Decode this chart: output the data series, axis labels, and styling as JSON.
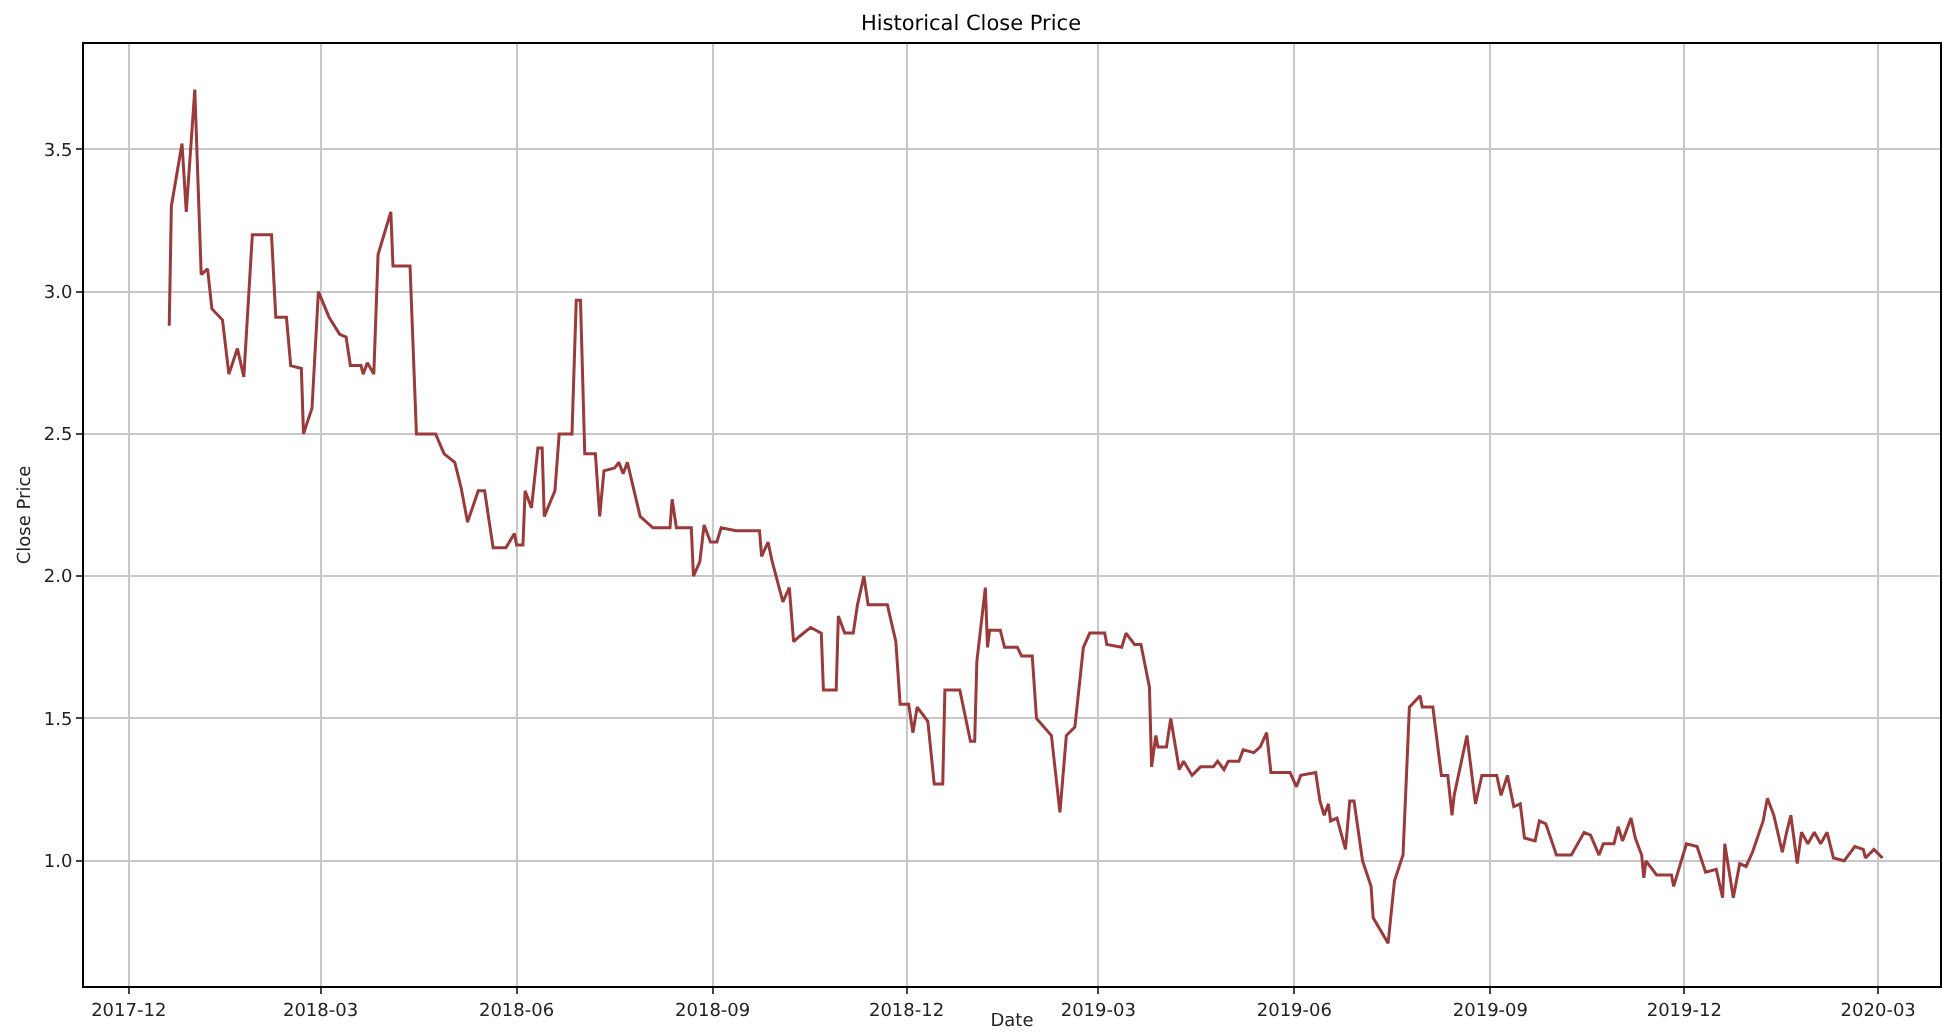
{
  "chart_data": {
    "type": "line",
    "title": "Historical Close Price",
    "xlabel": "Date",
    "ylabel": "Close Price",
    "x": [
      "2017-12-20",
      "2017-12-21",
      "2017-12-26",
      "2017-12-28",
      "2018-01-01",
      "2018-01-04",
      "2018-01-07",
      "2018-01-09",
      "2018-01-14",
      "2018-01-17",
      "2018-01-21",
      "2018-01-24",
      "2018-01-28",
      "2018-02-06",
      "2018-02-08",
      "2018-02-13",
      "2018-02-15",
      "2018-02-20",
      "2018-02-21",
      "2018-02-25",
      "2018-02-28",
      "2018-03-05",
      "2018-03-10",
      "2018-03-13",
      "2018-03-15",
      "2018-03-20",
      "2018-03-21",
      "2018-03-23",
      "2018-03-26",
      "2018-03-28",
      "2018-04-03",
      "2018-04-04",
      "2018-04-12",
      "2018-04-15",
      "2018-04-24",
      "2018-04-28",
      "2018-05-03",
      "2018-05-06",
      "2018-05-09",
      "2018-05-14",
      "2018-05-17",
      "2018-05-21",
      "2018-05-27",
      "2018-05-31",
      "2018-06-01",
      "2018-06-04",
      "2018-06-05",
      "2018-06-08",
      "2018-06-11",
      "2018-06-13",
      "2018-06-14",
      "2018-06-19",
      "2018-06-21",
      "2018-06-27",
      "2018-06-29",
      "2018-07-01",
      "2018-07-03",
      "2018-07-08",
      "2018-07-10",
      "2018-07-12",
      "2018-07-17",
      "2018-07-19",
      "2018-07-21",
      "2018-07-23",
      "2018-07-29",
      "2018-08-04",
      "2018-08-12",
      "2018-08-13",
      "2018-08-15",
      "2018-08-22",
      "2018-08-23",
      "2018-08-26",
      "2018-08-28",
      "2018-08-31",
      "2018-09-03",
      "2018-09-05",
      "2018-09-12",
      "2018-09-23",
      "2018-09-24",
      "2018-09-27",
      "2018-09-29",
      "2018-10-04",
      "2018-10-07",
      "2018-10-09",
      "2018-10-12",
      "2018-10-17",
      "2018-10-22",
      "2018-10-23",
      "2018-10-29",
      "2018-10-30",
      "2018-11-02",
      "2018-11-06",
      "2018-11-08",
      "2018-11-11",
      "2018-11-13",
      "2018-11-22",
      "2018-11-26",
      "2018-11-28",
      "2018-12-02",
      "2018-12-04",
      "2018-12-06",
      "2018-12-11",
      "2018-12-14",
      "2018-12-18",
      "2018-12-19",
      "2018-12-26",
      "2018-12-31",
      "2019-01-02",
      "2019-01-03",
      "2019-01-07",
      "2019-01-08",
      "2019-01-09",
      "2019-01-14",
      "2019-01-16",
      "2019-01-22",
      "2019-01-24",
      "2019-01-29",
      "2019-01-31",
      "2019-02-07",
      "2019-02-11",
      "2019-02-14",
      "2019-02-18",
      "2019-02-20",
      "2019-02-22",
      "2019-02-25",
      "2019-03-04",
      "2019-03-05",
      "2019-03-12",
      "2019-03-14",
      "2019-03-18",
      "2019-03-21",
      "2019-03-25",
      "2019-03-26",
      "2019-03-28",
      "2019-03-29",
      "2019-04-02",
      "2019-04-04",
      "2019-04-08",
      "2019-04-10",
      "2019-04-14",
      "2019-04-18",
      "2019-04-24",
      "2019-04-26",
      "2019-04-29",
      "2019-05-01",
      "2019-05-06",
      "2019-05-08",
      "2019-05-13",
      "2019-05-16",
      "2019-05-19",
      "2019-05-21",
      "2019-05-30",
      "2019-06-02",
      "2019-06-04",
      "2019-06-11",
      "2019-06-13",
      "2019-06-15",
      "2019-06-17",
      "2019-06-18",
      "2019-06-21",
      "2019-06-25",
      "2019-06-27",
      "2019-06-29",
      "2019-07-03",
      "2019-07-07",
      "2019-07-08",
      "2019-07-15",
      "2019-07-18",
      "2019-07-22",
      "2019-07-25",
      "2019-07-30",
      "2019-07-31",
      "2019-08-05",
      "2019-08-09",
      "2019-08-12",
      "2019-08-14",
      "2019-08-15",
      "2019-08-21",
      "2019-08-25",
      "2019-08-28",
      "2019-09-04",
      "2019-09-06",
      "2019-09-09",
      "2019-09-12",
      "2019-09-15",
      "2019-09-17",
      "2019-09-22",
      "2019-09-24",
      "2019-09-27",
      "2019-10-02",
      "2019-10-09",
      "2019-10-15",
      "2019-10-18",
      "2019-10-22",
      "2019-10-24",
      "2019-10-29",
      "2019-10-31",
      "2019-11-02",
      "2019-11-06",
      "2019-11-08",
      "2019-11-11",
      "2019-11-12",
      "2019-11-13",
      "2019-11-18",
      "2019-11-25",
      "2019-11-26",
      "2019-12-02",
      "2019-12-07",
      "2019-12-11",
      "2019-12-16",
      "2019-12-19",
      "2019-12-20",
      "2019-12-24",
      "2019-12-27",
      "2019-12-30",
      "2020-01-02",
      "2020-01-07",
      "2020-01-09",
      "2020-01-12",
      "2020-01-16",
      "2020-01-18",
      "2020-01-20",
      "2020-01-23",
      "2020-01-25",
      "2020-01-28",
      "2020-01-31",
      "2020-02-03",
      "2020-02-06",
      "2020-02-09",
      "2020-02-14",
      "2020-02-19",
      "2020-02-23",
      "2020-02-24",
      "2020-02-28",
      "2020-03-03"
    ],
    "series": [
      {
        "color": "#9a3a3a",
        "values": [
          2.88,
          3.3,
          3.52,
          3.28,
          3.71,
          3.06,
          3.08,
          2.94,
          2.9,
          2.71,
          2.8,
          2.7,
          3.2,
          3.2,
          2.91,
          2.91,
          2.74,
          2.73,
          2.5,
          2.59,
          3.0,
          2.91,
          2.85,
          2.84,
          2.74,
          2.74,
          2.71,
          2.75,
          2.71,
          3.13,
          3.28,
          3.09,
          3.09,
          2.5,
          2.5,
          2.43,
          2.4,
          2.31,
          2.19,
          2.3,
          2.3,
          2.1,
          2.1,
          2.15,
          2.11,
          2.11,
          2.3,
          2.24,
          2.45,
          2.45,
          2.21,
          2.3,
          2.5,
          2.5,
          2.97,
          2.97,
          2.43,
          2.43,
          2.21,
          2.37,
          2.38,
          2.4,
          2.36,
          2.4,
          2.21,
          2.17,
          2.17,
          2.27,
          2.17,
          2.17,
          2.0,
          2.05,
          2.18,
          2.12,
          2.12,
          2.17,
          2.16,
          2.16,
          2.07,
          2.12,
          2.05,
          1.91,
          1.96,
          1.77,
          1.79,
          1.82,
          1.8,
          1.6,
          1.6,
          1.86,
          1.8,
          1.8,
          1.9,
          2.0,
          1.9,
          1.9,
          1.77,
          1.55,
          1.55,
          1.45,
          1.54,
          1.49,
          1.27,
          1.27,
          1.6,
          1.6,
          1.42,
          1.42,
          1.7,
          1.96,
          1.75,
          1.81,
          1.81,
          1.75,
          1.75,
          1.72,
          1.72,
          1.5,
          1.44,
          1.17,
          1.44,
          1.47,
          1.61,
          1.75,
          1.8,
          1.8,
          1.76,
          1.75,
          1.8,
          1.76,
          1.76,
          1.61,
          1.33,
          1.44,
          1.4,
          1.4,
          1.5,
          1.32,
          1.35,
          1.3,
          1.33,
          1.33,
          1.35,
          1.32,
          1.35,
          1.35,
          1.39,
          1.38,
          1.4,
          1.45,
          1.31,
          1.31,
          1.26,
          1.3,
          1.31,
          1.21,
          1.16,
          1.2,
          1.14,
          1.15,
          1.04,
          1.21,
          1.21,
          1.0,
          0.91,
          0.8,
          0.71,
          0.93,
          1.02,
          1.54,
          1.58,
          1.54,
          1.54,
          1.3,
          1.3,
          1.16,
          1.23,
          1.44,
          1.2,
          1.3,
          1.3,
          1.23,
          1.3,
          1.19,
          1.2,
          1.08,
          1.07,
          1.14,
          1.13,
          1.02,
          1.02,
          1.1,
          1.09,
          1.02,
          1.06,
          1.06,
          1.12,
          1.07,
          1.15,
          1.08,
          1.02,
          0.94,
          1.0,
          0.95,
          0.95,
          0.91,
          1.06,
          1.05,
          0.96,
          0.97,
          0.87,
          1.06,
          0.87,
          0.99,
          0.98,
          1.03,
          1.14,
          1.22,
          1.16,
          1.03,
          1.1,
          1.16,
          0.99,
          1.1,
          1.06,
          1.1,
          1.06,
          1.1,
          1.01,
          1.0,
          1.05,
          1.04,
          1.01,
          1.04,
          1.01
        ]
      }
    ],
    "xlim": [
      "2017-11-10",
      "2020-03-30"
    ],
    "xticks": [
      "2017-12",
      "2018-03",
      "2018-06",
      "2018-09",
      "2018-12",
      "2019-03",
      "2019-06",
      "2019-09",
      "2019-12",
      "2020-03"
    ],
    "ylim": [
      0.56,
      3.87
    ],
    "yticks": [
      {
        "value": 1,
        "label": "1.0"
      },
      {
        "value": 1.5,
        "label": "1.5"
      },
      {
        "value": 2,
        "label": "2.0"
      },
      {
        "value": 2.5,
        "label": "2.5"
      },
      {
        "value": 3,
        "label": "3.0"
      },
      {
        "value": 3.5,
        "label": "3.5"
      }
    ],
    "grid": true
  }
}
